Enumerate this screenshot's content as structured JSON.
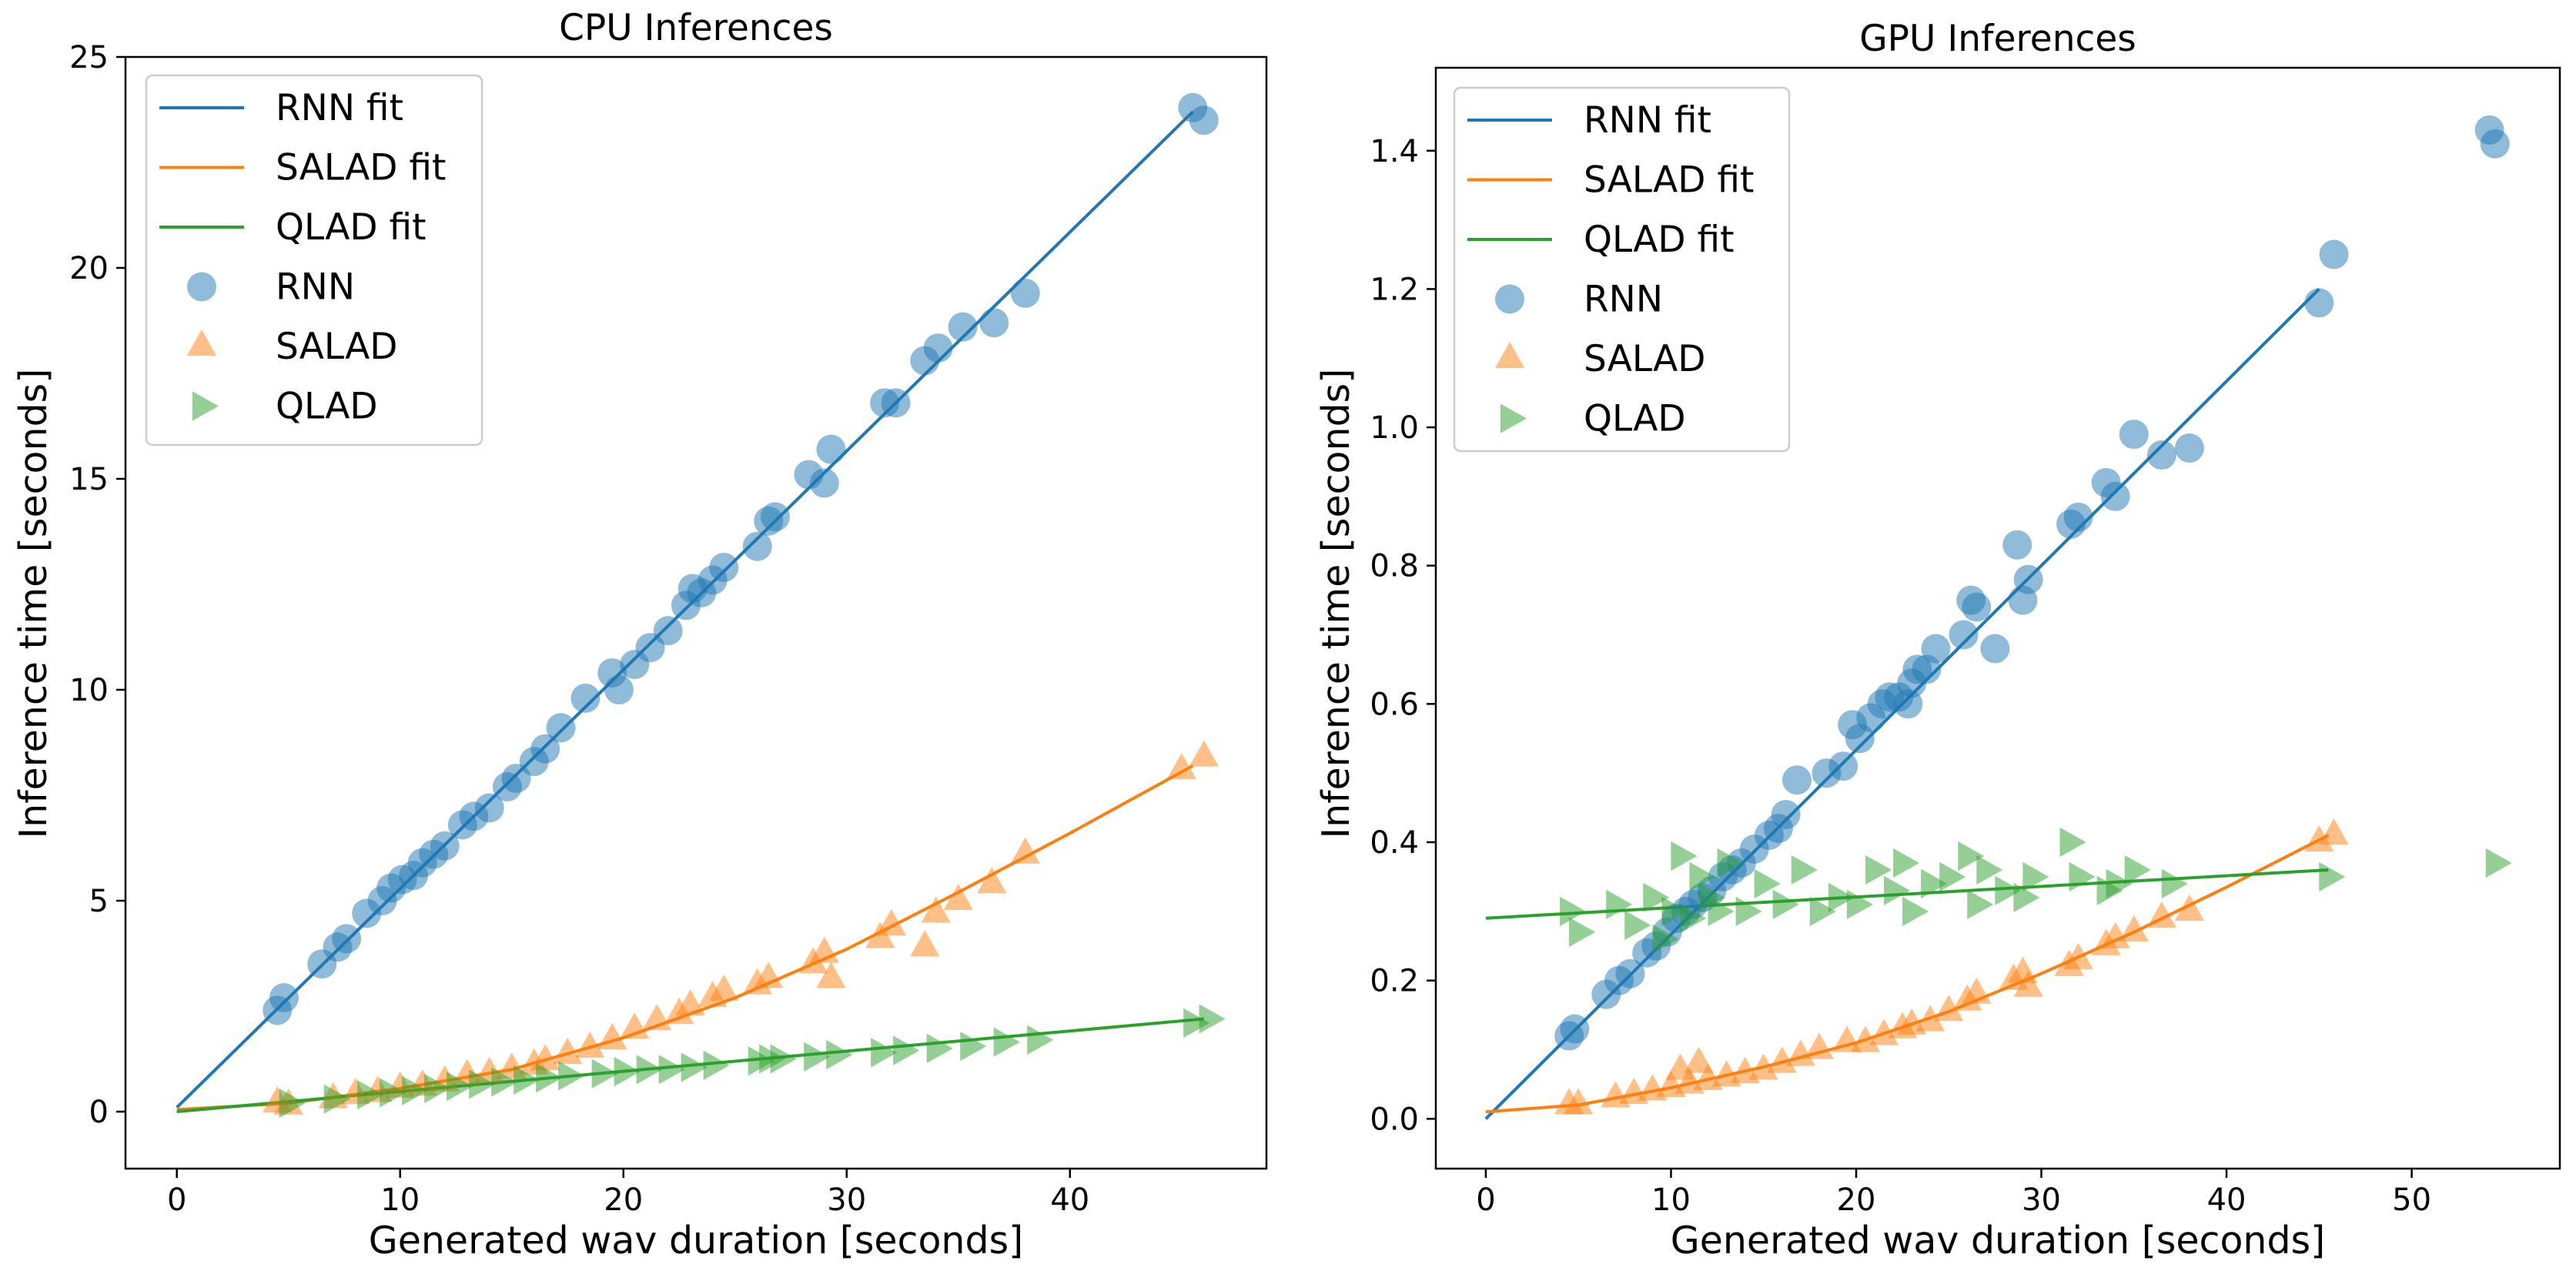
{
  "colors": {
    "rnn": "#1f77b4",
    "salad": "#ff7f0e",
    "qlad": "#2ca02c"
  },
  "chart_data": [
    {
      "type": "scatter",
      "title": "CPU Inferences",
      "xlabel": "Generated wav duration [seconds]",
      "ylabel": "Inference time [seconds]",
      "xlim": [
        -2.3,
        48.8
      ],
      "ylim": [
        -1.35,
        25
      ],
      "xticks": [
        0,
        10,
        20,
        30,
        40
      ],
      "yticks": [
        0,
        5,
        10,
        15,
        20,
        25
      ],
      "xtick_labels": [
        "0",
        "10",
        "20",
        "30",
        "40"
      ],
      "ytick_labels": [
        "0",
        "5",
        "10",
        "15",
        "20",
        "25"
      ],
      "legend_position": "upper left",
      "legend": [
        "RNN fit",
        "SALAD fit",
        "QLAD fit",
        "RNN",
        "SALAD",
        "QLAD"
      ],
      "fits": [
        {
          "name": "RNN fit",
          "color_key": "rnn",
          "points": [
            [
              0,
              0.1
            ],
            [
              45.5,
              23.7
            ]
          ]
        },
        {
          "name": "SALAD fit",
          "color_key": "salad",
          "points": [
            [
              0,
              0.05
            ],
            [
              5,
              0.2
            ],
            [
              10,
              0.55
            ],
            [
              15,
              1.0
            ],
            [
              20,
              1.75
            ],
            [
              25,
              2.7
            ],
            [
              30,
              3.85
            ],
            [
              35,
              5.2
            ],
            [
              40,
              6.6
            ],
            [
              45.5,
              8.2
            ]
          ]
        },
        {
          "name": "QLAD fit",
          "color_key": "qlad",
          "points": [
            [
              0,
              0.0
            ],
            [
              46,
              2.2
            ]
          ]
        }
      ],
      "series": [
        {
          "name": "RNN",
          "marker": "circle",
          "color_key": "rnn",
          "x": [
            4.5,
            4.8,
            6.5,
            7.2,
            7.6,
            8.5,
            9.2,
            9.6,
            10.1,
            10.6,
            11.0,
            11.5,
            12.0,
            12.8,
            13.3,
            14.0,
            14.8,
            15.2,
            16.0,
            16.5,
            17.2,
            18.3,
            19.5,
            19.8,
            20.5,
            21.2,
            22.0,
            22.8,
            23.1,
            23.5,
            24.0,
            24.5,
            26.0,
            26.5,
            26.8,
            28.3,
            29.0,
            29.3,
            31.7,
            32.2,
            33.5,
            34.1,
            35.2,
            36.6,
            38.0,
            45.5,
            46.0
          ],
          "y": [
            2.4,
            2.7,
            3.5,
            3.9,
            4.1,
            4.7,
            5.0,
            5.3,
            5.5,
            5.6,
            5.9,
            6.1,
            6.3,
            6.8,
            7.0,
            7.2,
            7.7,
            7.9,
            8.3,
            8.6,
            9.1,
            9.8,
            10.4,
            10.0,
            10.6,
            11.0,
            11.4,
            12.0,
            12.4,
            12.3,
            12.6,
            12.9,
            13.4,
            14.0,
            14.1,
            15.1,
            14.9,
            15.7,
            16.8,
            16.8,
            17.8,
            18.1,
            18.6,
            18.7,
            19.4,
            23.8,
            23.5
          ]
        },
        {
          "name": "SALAD",
          "marker": "triangle",
          "color_key": "salad",
          "x": [
            4.5,
            5.0,
            7.0,
            8.0,
            9.0,
            10.0,
            11.0,
            12.0,
            13.0,
            14.0,
            15.0,
            16.0,
            16.5,
            17.5,
            18.5,
            19.5,
            20.5,
            21.5,
            22.5,
            23.0,
            24.0,
            24.5,
            26.0,
            26.5,
            28.5,
            29.0,
            29.3,
            31.5,
            32.0,
            33.5,
            34.0,
            35.0,
            36.5,
            38.0,
            45.0,
            46.0
          ],
          "y": [
            0.2,
            0.15,
            0.3,
            0.4,
            0.45,
            0.55,
            0.6,
            0.7,
            0.85,
            0.9,
            1.0,
            1.1,
            1.2,
            1.35,
            1.5,
            1.7,
            1.95,
            2.15,
            2.3,
            2.5,
            2.7,
            2.85,
            3.0,
            3.15,
            3.5,
            3.75,
            3.15,
            4.1,
            4.4,
            3.9,
            4.7,
            5.0,
            5.4,
            6.1,
            8.1,
            8.4
          ]
        },
        {
          "name": "QLAD",
          "marker": "right-triangle",
          "color_key": "qlad",
          "x": [
            5.0,
            7.0,
            8.5,
            9.5,
            10.5,
            11.5,
            12.5,
            13.5,
            14.5,
            15.5,
            16.5,
            17.5,
            19.0,
            20.0,
            21.0,
            22.0,
            23.0,
            24.0,
            26.0,
            26.5,
            27.0,
            28.5,
            29.5,
            31.5,
            32.5,
            34.0,
            35.5,
            37.0,
            38.5,
            45.5,
            46.2
          ],
          "y": [
            0.2,
            0.3,
            0.4,
            0.45,
            0.5,
            0.55,
            0.6,
            0.65,
            0.7,
            0.75,
            0.8,
            0.85,
            0.9,
            0.95,
            1.0,
            1.0,
            1.05,
            1.1,
            1.2,
            1.25,
            1.25,
            1.3,
            1.35,
            1.4,
            1.45,
            1.5,
            1.55,
            1.65,
            1.7,
            2.1,
            2.2
          ]
        }
      ]
    },
    {
      "type": "scatter",
      "title": "GPU Inferences",
      "xlabel": "Generated wav duration [seconds]",
      "ylabel": "Inference time [seconds]",
      "xlim": [
        -2.7,
        58.0
      ],
      "ylim": [
        -0.072,
        1.52
      ],
      "xticks": [
        0,
        10,
        20,
        30,
        40,
        50
      ],
      "yticks": [
        0.0,
        0.2,
        0.4,
        0.6,
        0.8,
        1.0,
        1.2,
        1.4
      ],
      "xtick_labels": [
        "0",
        "10",
        "20",
        "30",
        "40",
        "50"
      ],
      "ytick_labels": [
        "0.0",
        "0.2",
        "0.4",
        "0.6",
        "0.8",
        "1.0",
        "1.2",
        "1.4"
      ],
      "legend_position": "upper left",
      "legend": [
        "RNN fit",
        "SALAD fit",
        "QLAD fit",
        "RNN",
        "SALAD",
        "QLAD"
      ],
      "fits": [
        {
          "name": "RNN fit",
          "color_key": "rnn",
          "points": [
            [
              0,
              0.0
            ],
            [
              45,
              1.2
            ]
          ]
        },
        {
          "name": "SALAD fit",
          "color_key": "salad",
          "points": [
            [
              0,
              0.01
            ],
            [
              5,
              0.02
            ],
            [
              10,
              0.045
            ],
            [
              15,
              0.075
            ],
            [
              20,
              0.11
            ],
            [
              25,
              0.155
            ],
            [
              30,
              0.21
            ],
            [
              35,
              0.27
            ],
            [
              40,
              0.335
            ],
            [
              45.5,
              0.41
            ]
          ]
        },
        {
          "name": "QLAD fit",
          "color_key": "qlad",
          "points": [
            [
              0,
              0.29
            ],
            [
              45.5,
              0.36
            ]
          ]
        }
      ],
      "series": [
        {
          "name": "RNN",
          "marker": "circle",
          "color_key": "rnn",
          "x": [
            4.5,
            4.8,
            6.5,
            7.2,
            7.8,
            8.7,
            9.2,
            9.8,
            10.3,
            10.8,
            11.2,
            11.7,
            12.2,
            12.8,
            13.3,
            13.8,
            14.5,
            15.3,
            15.8,
            16.2,
            16.8,
            18.4,
            19.3,
            19.8,
            20.2,
            20.8,
            21.4,
            21.8,
            22.3,
            22.8,
            23.0,
            23.3,
            23.8,
            24.3,
            25.8,
            26.2,
            26.5,
            27.5,
            28.7,
            29.0,
            29.3,
            31.6,
            32.0,
            33.5,
            34.0,
            35.0,
            36.5,
            38.0,
            45.0,
            45.8,
            54.2,
            54.5
          ],
          "y": [
            0.12,
            0.13,
            0.18,
            0.2,
            0.21,
            0.24,
            0.25,
            0.27,
            0.29,
            0.3,
            0.31,
            0.32,
            0.33,
            0.35,
            0.36,
            0.37,
            0.39,
            0.41,
            0.42,
            0.44,
            0.49,
            0.5,
            0.51,
            0.57,
            0.55,
            0.58,
            0.6,
            0.61,
            0.61,
            0.6,
            0.63,
            0.65,
            0.65,
            0.68,
            0.7,
            0.75,
            0.74,
            0.68,
            0.83,
            0.75,
            0.78,
            0.86,
            0.87,
            0.92,
            0.9,
            0.99,
            0.96,
            0.97,
            1.18,
            1.25,
            1.43,
            1.41
          ]
        },
        {
          "name": "SALAD",
          "marker": "triangle",
          "color_key": "salad",
          "x": [
            4.5,
            5.0,
            7.0,
            8.0,
            9.0,
            10.0,
            10.5,
            11.0,
            11.5,
            12.0,
            13.0,
            14.0,
            15.0,
            16.0,
            17.0,
            18.0,
            19.5,
            20.5,
            21.5,
            22.5,
            23.0,
            24.0,
            25.0,
            26.0,
            26.5,
            28.5,
            29.0,
            29.3,
            31.5,
            32.0,
            33.5,
            34.0,
            35.0,
            36.5,
            38.0,
            45.0,
            45.8
          ],
          "y": [
            0.02,
            0.02,
            0.03,
            0.035,
            0.04,
            0.045,
            0.07,
            0.05,
            0.08,
            0.055,
            0.06,
            0.065,
            0.07,
            0.08,
            0.09,
            0.1,
            0.11,
            0.11,
            0.12,
            0.13,
            0.135,
            0.14,
            0.155,
            0.17,
            0.18,
            0.2,
            0.21,
            0.19,
            0.22,
            0.23,
            0.25,
            0.26,
            0.27,
            0.29,
            0.3,
            0.4,
            0.41
          ]
        },
        {
          "name": "QLAD",
          "marker": "right-triangle",
          "color_key": "qlad",
          "x": [
            4.5,
            5.0,
            7.0,
            8.0,
            9.0,
            9.5,
            10.0,
            10.5,
            11.0,
            11.5,
            12.0,
            12.5,
            13.0,
            14.0,
            15.0,
            16.0,
            17.0,
            18.0,
            19.0,
            20.0,
            21.0,
            22.0,
            22.5,
            23.0,
            24.0,
            25.0,
            26.0,
            26.5,
            27.0,
            28.0,
            29.0,
            29.5,
            31.5,
            32.0,
            33.5,
            34.0,
            35.0,
            37.0,
            45.5,
            54.5
          ],
          "y": [
            0.3,
            0.27,
            0.31,
            0.28,
            0.32,
            0.26,
            0.3,
            0.38,
            0.29,
            0.35,
            0.32,
            0.3,
            0.37,
            0.3,
            0.34,
            0.31,
            0.36,
            0.3,
            0.32,
            0.31,
            0.36,
            0.33,
            0.37,
            0.3,
            0.34,
            0.35,
            0.38,
            0.31,
            0.36,
            0.33,
            0.32,
            0.35,
            0.4,
            0.35,
            0.33,
            0.34,
            0.36,
            0.34,
            0.35,
            0.37
          ]
        }
      ]
    }
  ]
}
